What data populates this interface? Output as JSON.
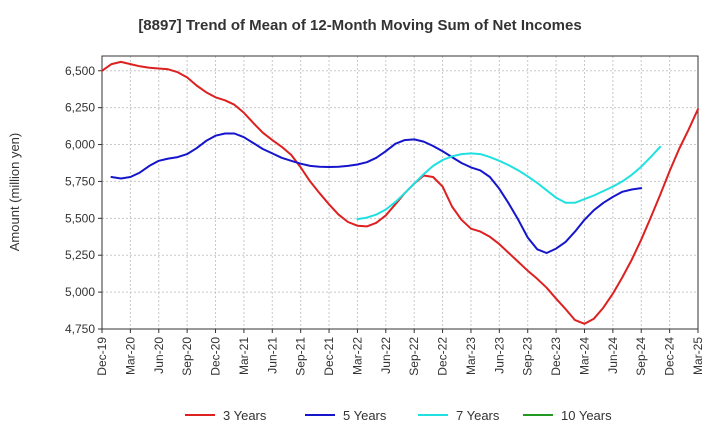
{
  "chart_data": {
    "type": "line",
    "title": "[8897]  Trend of Mean of 12-Month Moving Sum of Net Incomes",
    "ylabel": "Amount (million yen)",
    "xlabel": "",
    "ylim": [
      4750,
      6600
    ],
    "yticks": [
      4750,
      5000,
      5250,
      5500,
      5750,
      6000,
      6250,
      6500
    ],
    "ytick_labels": [
      "4,750",
      "5,000",
      "5,250",
      "5,500",
      "5,750",
      "6,000",
      "6,250",
      "6,500"
    ],
    "x_start": "Dec-19",
    "x_range": [
      0,
      63
    ],
    "xticks": [
      0,
      3,
      6,
      9,
      12,
      15,
      18,
      21,
      24,
      27,
      30,
      33,
      36,
      39,
      42,
      45,
      48,
      51,
      54,
      57,
      60,
      63
    ],
    "xtick_labels": [
      "Dec-19",
      "Mar-20",
      "Jun-20",
      "Sep-20",
      "Dec-20",
      "Mar-21",
      "Jun-21",
      "Sep-21",
      "Dec-21",
      "Mar-22",
      "Jun-22",
      "Sep-22",
      "Dec-22",
      "Mar-23",
      "Jun-23",
      "Sep-23",
      "Dec-23",
      "Mar-24",
      "Jun-24",
      "Sep-24",
      "Dec-24",
      "Mar-25"
    ],
    "grid": true,
    "legend_position": "bottom",
    "series": [
      {
        "name": "3 Years",
        "color": "#dd2020",
        "start": 0,
        "values": [
          6500,
          6545,
          6560,
          6545,
          6530,
          6520,
          6515,
          6510,
          6490,
          6455,
          6400,
          6355,
          6320,
          6300,
          6270,
          6215,
          6145,
          6080,
          6030,
          5985,
          5930,
          5845,
          5750,
          5670,
          5595,
          5525,
          5475,
          5450,
          5445,
          5470,
          5520,
          5595,
          5670,
          5735,
          5790,
          5780,
          5715,
          5580,
          5490,
          5430,
          5410,
          5375,
          5325,
          5265,
          5205,
          5145,
          5090,
          5030,
          4955,
          4885,
          4810,
          4785,
          4820,
          4895,
          4990,
          5100,
          5220,
          5355,
          5505,
          5660,
          5820,
          5970,
          6100,
          6240
        ]
      },
      {
        "name": "5 Years",
        "color": "#1515cc",
        "start": 1,
        "values": [
          5780,
          5770,
          5780,
          5810,
          5855,
          5890,
          5905,
          5915,
          5935,
          5975,
          6025,
          6060,
          6075,
          6075,
          6050,
          6010,
          5970,
          5940,
          5910,
          5890,
          5870,
          5855,
          5850,
          5848,
          5850,
          5855,
          5865,
          5880,
          5910,
          5955,
          6005,
          6030,
          6035,
          6020,
          5990,
          5955,
          5915,
          5875,
          5845,
          5825,
          5780,
          5700,
          5600,
          5490,
          5370,
          5290,
          5265,
          5295,
          5340,
          5410,
          5490,
          5555,
          5605,
          5645,
          5680,
          5695,
          5705
        ]
      },
      {
        "name": "7 Years",
        "color": "#20e0e0",
        "start": 27,
        "values": [
          5495,
          5505,
          5525,
          5560,
          5610,
          5670,
          5735,
          5800,
          5855,
          5895,
          5920,
          5935,
          5940,
          5935,
          5915,
          5890,
          5860,
          5825,
          5785,
          5740,
          5690,
          5640,
          5605,
          5605,
          5630,
          5655,
          5685,
          5715,
          5750,
          5795,
          5850,
          5915,
          5985
        ]
      },
      {
        "name": "10 Years",
        "color": "#229922",
        "start": 0,
        "values": []
      }
    ]
  }
}
